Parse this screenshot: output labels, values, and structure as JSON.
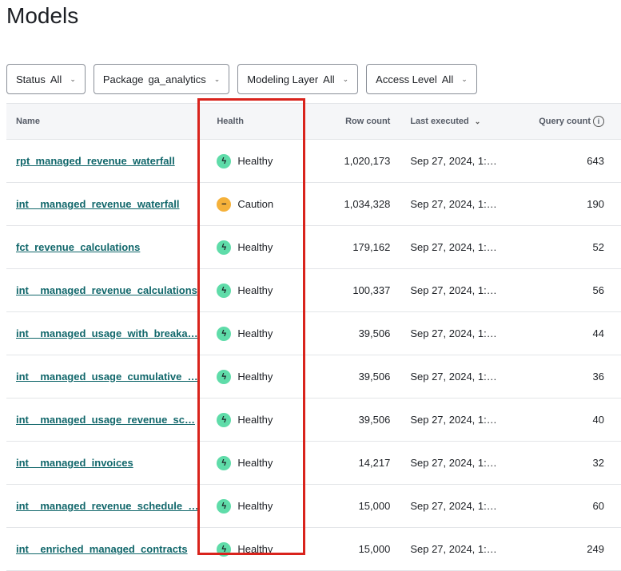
{
  "title": "Models",
  "filters": [
    {
      "label": "Status",
      "value": "All"
    },
    {
      "label": "Package",
      "value": "ga_analytics"
    },
    {
      "label": "Modeling Layer",
      "value": "All"
    },
    {
      "label": "Access Level",
      "value": "All"
    }
  ],
  "columns": {
    "name": "Name",
    "health": "Health",
    "row_count": "Row count",
    "last_executed": "Last executed",
    "query_count": "Query count"
  },
  "health_colors": {
    "Healthy": "#5fdca9",
    "Caution": "#f5b13a"
  },
  "highlight_color": "#d9231c",
  "rows": [
    {
      "name": "rpt_managed_revenue_waterfall",
      "health": "Healthy",
      "row_count": "1,020,173",
      "last_executed": "Sep 27, 2024, 1:…",
      "query_count": "643"
    },
    {
      "name": "int__managed_revenue_waterfall",
      "health": "Caution",
      "row_count": "1,034,328",
      "last_executed": "Sep 27, 2024, 1:…",
      "query_count": "190"
    },
    {
      "name": "fct_revenue_calculations",
      "health": "Healthy",
      "row_count": "179,162",
      "last_executed": "Sep 27, 2024, 1:…",
      "query_count": "52"
    },
    {
      "name": "int__managed_revenue_calculations",
      "health": "Healthy",
      "row_count": "100,337",
      "last_executed": "Sep 27, 2024, 1:…",
      "query_count": "56"
    },
    {
      "name": "int__managed_usage_with_breaka…",
      "health": "Healthy",
      "row_count": "39,506",
      "last_executed": "Sep 27, 2024, 1:…",
      "query_count": "44"
    },
    {
      "name": "int__managed_usage_cumulative_…",
      "health": "Healthy",
      "row_count": "39,506",
      "last_executed": "Sep 27, 2024, 1:…",
      "query_count": "36"
    },
    {
      "name": "int__managed_usage_revenue_sc…",
      "health": "Healthy",
      "row_count": "39,506",
      "last_executed": "Sep 27, 2024, 1:…",
      "query_count": "40"
    },
    {
      "name": "int__managed_invoices",
      "health": "Healthy",
      "row_count": "14,217",
      "last_executed": "Sep 27, 2024, 1:…",
      "query_count": "32"
    },
    {
      "name": "int__managed_revenue_schedule_…",
      "health": "Healthy",
      "row_count": "15,000",
      "last_executed": "Sep 27, 2024, 1:…",
      "query_count": "60"
    },
    {
      "name": "int__enriched_managed_contracts",
      "health": "Healthy",
      "row_count": "15,000",
      "last_executed": "Sep 27, 2024, 1:…",
      "query_count": "249"
    }
  ]
}
